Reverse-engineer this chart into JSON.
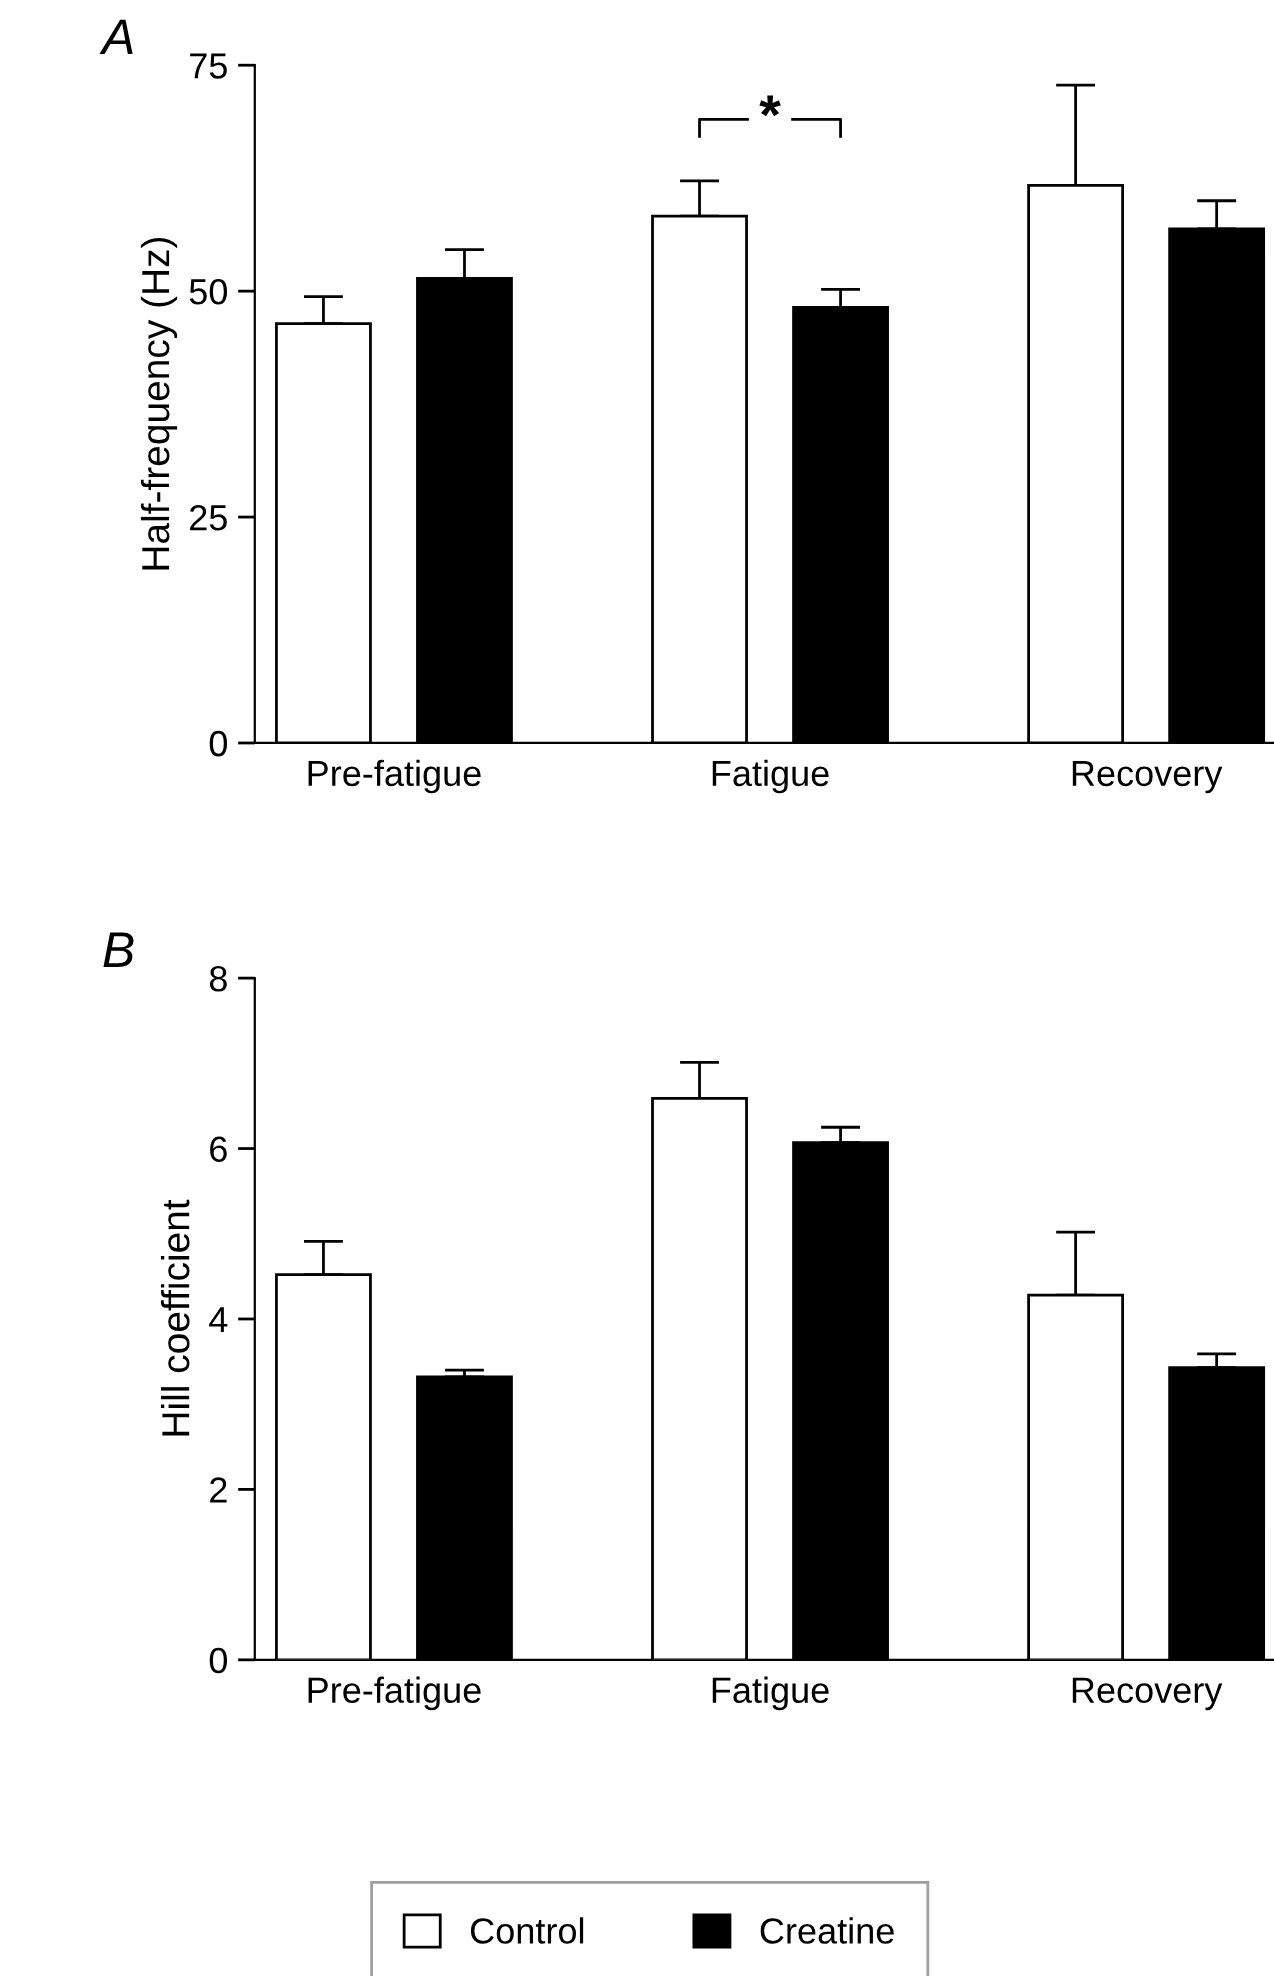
{
  "chart_data": [
    {
      "type": "bar",
      "title": "A",
      "ylabel": "Half-frequency (Hz)",
      "categories": [
        "Pre-fatigue",
        "Fatigue",
        "Recovery"
      ],
      "series": [
        {
          "color": "#ffffff",
          "values": [
            46.4,
            58.3,
            61.7
          ],
          "errors": [
            [
              46.4,
              49.4
            ],
            [
              58.3,
              62.2
            ],
            [
              61.7,
              72.8
            ]
          ]
        },
        {
          "color": "#000000",
          "values": [
            51.4,
            48.2,
            56.9
          ],
          "errors": [
            [
              51.4,
              54.6
            ],
            [
              48.2,
              50.2
            ],
            [
              56.9,
              60.0
            ]
          ]
        }
      ],
      "ylim": [
        0,
        75
      ],
      "yticks": [
        0,
        25,
        50,
        75
      ],
      "grid": false,
      "legend": false,
      "annotations": [
        "*"
      ]
    },
    {
      "type": "bar",
      "title": "B",
      "ylabel": "Hill coefficient",
      "categories": [
        "Pre-fatigue",
        "Fatigue",
        "Recovery"
      ],
      "series": [
        {
          "name": "Control",
          "color": "#ffffff",
          "values": [
            4.52,
            6.59,
            4.28
          ],
          "errors": [
            [
              4.52,
              4.91
            ],
            [
              6.59,
              7.01
            ],
            [
              4.28,
              5.02
            ]
          ]
        },
        {
          "name": "Creatine",
          "color": "#000000",
          "values": [
            3.32,
            6.07,
            3.43
          ],
          "errors": [
            [
              3.32,
              3.4
            ],
            [
              6.07,
              6.25
            ],
            [
              3.43,
              3.59
            ]
          ]
        }
      ],
      "ylim": [
        0,
        8
      ],
      "yticks": [
        0,
        2,
        4,
        6,
        8
      ],
      "grid": false,
      "legend": "bottom"
    }
  ]
}
